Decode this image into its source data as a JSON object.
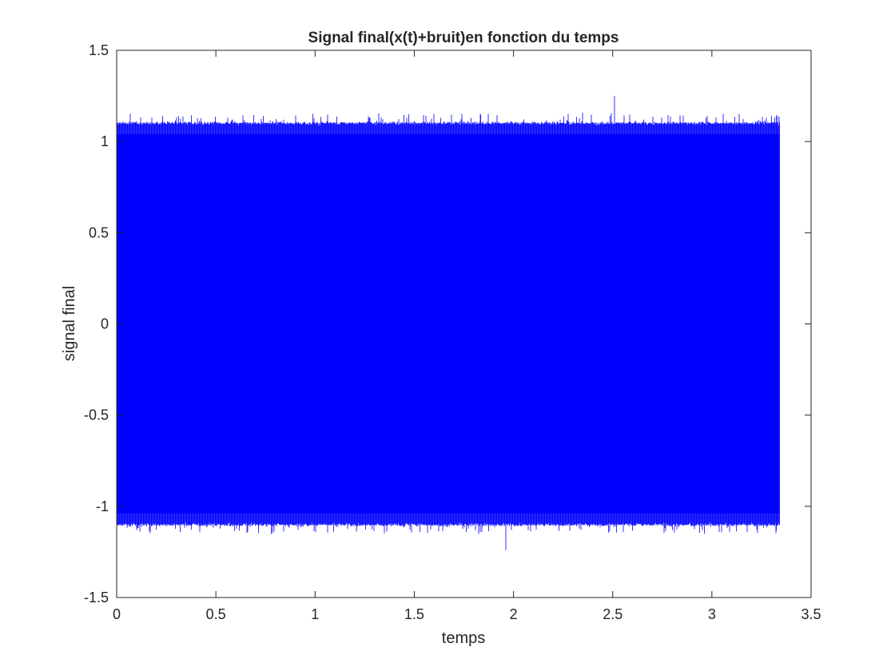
{
  "chart_data": {
    "type": "line",
    "title": "Signal final(x(t)+bruit)en fonction du temps",
    "xlabel": "temps",
    "ylabel": "signal final",
    "xlim": [
      0,
      3.5
    ],
    "ylim": [
      -1.5,
      1.5
    ],
    "xticks": [
      0,
      0.5,
      1,
      1.5,
      2,
      2.5,
      3,
      3.5
    ],
    "xtick_labels": [
      "0",
      "0.5",
      "1",
      "1.5",
      "2",
      "2.5",
      "3",
      "3.5"
    ],
    "yticks": [
      -1.5,
      -1,
      -0.5,
      0,
      0.5,
      1,
      1.5
    ],
    "ytick_labels": [
      "-1.5",
      "-1",
      "-0.5",
      "0",
      "0.5",
      "1",
      "1.5"
    ],
    "grid": false,
    "box": true,
    "series": [
      {
        "color": "#0000ff",
        "x_range": [
          0,
          3.34
        ],
        "typical_envelope": [
          -1.1,
          1.1
        ],
        "peak_max": {
          "x": 2.51,
          "y": 1.25
        },
        "peak_min": {
          "x": 1.96,
          "y": -1.24
        }
      }
    ]
  }
}
